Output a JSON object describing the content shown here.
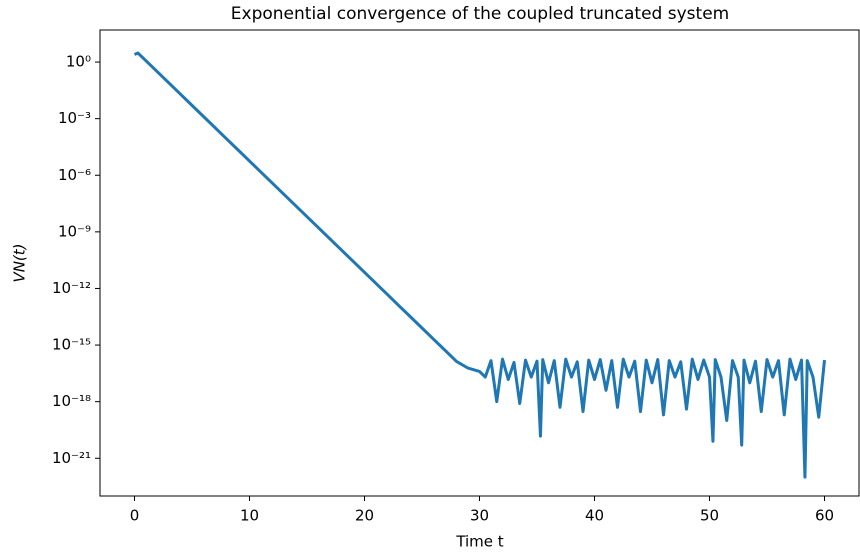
{
  "chart_data": {
    "type": "line",
    "title": "Exponential convergence of the coupled truncated system",
    "x_label": "Time t",
    "y_label": "VN(t)",
    "log_y": true,
    "xlim": [
      -3,
      63
    ],
    "xticks": [
      0,
      10,
      20,
      30,
      40,
      50,
      60
    ],
    "ylim": [
      1e-23,
      50
    ],
    "yticks": [
      {
        "value": 1,
        "label": "10⁰"
      },
      {
        "value": 0.001,
        "label": "10⁻³"
      },
      {
        "value": 1e-06,
        "label": "10⁻⁶"
      },
      {
        "value": 1e-09,
        "label": "10⁻⁹"
      },
      {
        "value": 1e-12,
        "label": "10⁻¹²"
      },
      {
        "value": 1e-15,
        "label": "10⁻¹⁵"
      },
      {
        "value": 1e-18,
        "label": "10⁻¹⁸"
      },
      {
        "value": 1e-21,
        "label": "10⁻²¹"
      }
    ],
    "series": [
      {
        "color": "#1f77b4",
        "x": [
          0,
          0.3,
          1,
          2,
          3,
          4,
          5,
          6,
          7,
          8,
          9,
          10,
          11,
          12,
          13,
          14,
          15,
          16,
          17,
          18,
          19,
          20,
          21,
          22,
          23,
          24,
          25,
          26,
          27,
          28,
          29,
          30,
          30.5,
          31,
          31.5,
          32,
          32.5,
          33,
          33.5,
          34,
          34.5,
          35,
          35.3,
          35.5,
          36,
          36.5,
          37,
          37.5,
          38,
          38.5,
          39,
          39.5,
          40,
          40.5,
          41,
          41.5,
          42,
          42.5,
          43,
          43.5,
          44,
          44.5,
          45,
          45.5,
          46,
          46.5,
          47,
          47.5,
          48,
          48.5,
          49,
          49.5,
          50,
          50.3,
          50.5,
          51,
          51.5,
          52,
          52.5,
          52.8,
          53,
          53.5,
          54,
          54.5,
          55,
          55.5,
          56,
          56.5,
          57,
          57.5,
          58,
          58.3,
          58.5,
          59,
          59.5,
          60
        ],
        "values": [
          2.5,
          3,
          1.16,
          0.298,
          0.0766,
          0.0197,
          0.00506,
          0.0013,
          0.000334,
          8.59e-05,
          2.21e-05,
          5.68e-06,
          1.46e-06,
          3.75e-07,
          9.64e-08,
          2.48e-08,
          6.37e-09,
          1.64e-09,
          4.21e-10,
          1.08e-10,
          2.78e-11,
          7.14e-12,
          1.84e-12,
          4.72e-13,
          1.21e-13,
          3.12e-14,
          8.02e-15,
          2.06e-15,
          5.3e-16,
          1.36e-16,
          6e-17,
          4e-17,
          2e-17,
          1.5e-16,
          1e-18,
          1.8e-16,
          1.5e-17,
          1.2e-16,
          8e-19,
          1.6e-16,
          2e-17,
          1.4e-16,
          1.5e-20,
          1.7e-16,
          1e-17,
          1.5e-16,
          5e-19,
          1.8e-16,
          2e-17,
          1.3e-16,
          3e-19,
          1.6e-16,
          1.5e-17,
          1.7e-16,
          4e-18,
          1.5e-16,
          5e-19,
          1.8e-16,
          2e-17,
          1.4e-16,
          3e-19,
          1.6e-16,
          1e-17,
          1.7e-16,
          2e-19,
          1.5e-16,
          2e-17,
          1.3e-16,
          4e-19,
          1.8e-16,
          1.5e-17,
          1.6e-16,
          2e-17,
          8e-21,
          1.7e-16,
          2e-17,
          1e-19,
          1.5e-16,
          2e-17,
          5e-21,
          1.6e-16,
          1e-17,
          1.4e-16,
          3e-19,
          1.7e-16,
          2e-17,
          1.5e-16,
          2e-19,
          1.8e-16,
          1.5e-17,
          1.6e-16,
          1e-22,
          1.5e-16,
          2e-17,
          1.5e-19,
          1.6e-16
        ]
      }
    ]
  }
}
